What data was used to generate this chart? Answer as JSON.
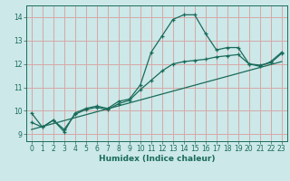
{
  "xlabel": "Humidex (Indice chaleur)",
  "bg_color": "#cce8e8",
  "grid_color": "#d8a8a8",
  "line_color": "#1a6b5a",
  "xlim": [
    -0.5,
    23.5
  ],
  "ylim": [
    8.7,
    14.5
  ],
  "xticks": [
    0,
    1,
    2,
    3,
    4,
    5,
    6,
    7,
    8,
    9,
    10,
    11,
    12,
    13,
    14,
    15,
    16,
    17,
    18,
    19,
    20,
    21,
    22,
    23
  ],
  "yticks": [
    9,
    10,
    11,
    12,
    13,
    14
  ],
  "line1_x": [
    0,
    1,
    2,
    3,
    4,
    5,
    6,
    7,
    8,
    9,
    10,
    11,
    12,
    13,
    14,
    15,
    16,
    17,
    18,
    19,
    20,
    21,
    22,
    23
  ],
  "line1_y": [
    9.9,
    9.3,
    9.6,
    9.1,
    9.9,
    10.1,
    10.2,
    10.1,
    10.4,
    10.5,
    11.1,
    12.5,
    13.2,
    13.9,
    14.1,
    14.1,
    13.3,
    12.6,
    12.7,
    12.7,
    12.0,
    11.9,
    12.1,
    12.5
  ],
  "line2_x": [
    0,
    1,
    2,
    3,
    4,
    5,
    6,
    7,
    8,
    9,
    10,
    11,
    12,
    13,
    14,
    15,
    16,
    17,
    18,
    19,
    20,
    21,
    22,
    23
  ],
  "line2_y": [
    9.5,
    9.3,
    9.6,
    9.2,
    9.85,
    10.05,
    10.15,
    10.05,
    10.3,
    10.45,
    10.9,
    11.3,
    11.7,
    12.0,
    12.1,
    12.15,
    12.2,
    12.3,
    12.35,
    12.4,
    12.0,
    11.95,
    12.05,
    12.45
  ],
  "line3_x": [
    0,
    23
  ],
  "line3_y": [
    9.2,
    12.1
  ]
}
